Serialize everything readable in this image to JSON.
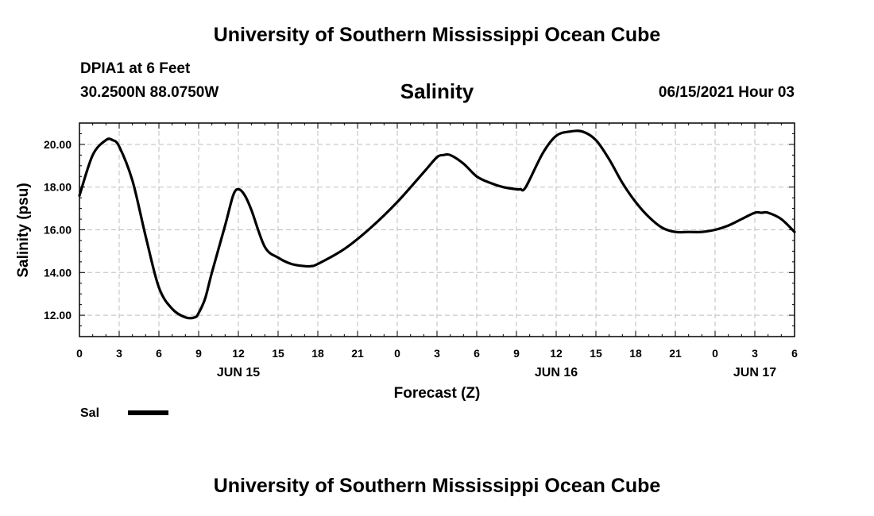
{
  "header": {
    "title": "University of Southern Mississippi Ocean Cube",
    "station": "DPIA1 at 6 Feet",
    "coords": "30.2500N  88.0750W",
    "datetime": "06/15/2021 Hour 03"
  },
  "footer": {
    "title": "University of Southern Mississippi Ocean Cube"
  },
  "chart_data": {
    "type": "line",
    "title": "Salinity",
    "xlabel": "Forecast (Z)",
    "ylabel": "Salinity (psu)",
    "ylim": [
      11,
      21
    ],
    "yticks": [
      "12.00",
      "14.00",
      "16.00",
      "18.00",
      "20.00"
    ],
    "ytick_values": [
      12,
      14,
      16,
      18,
      20
    ],
    "xlim": [
      0,
      54
    ],
    "xtick_labels": [
      "0",
      "3",
      "6",
      "9",
      "12",
      "15",
      "18",
      "21",
      "0",
      "3",
      "6",
      "9",
      "12",
      "15",
      "18",
      "21",
      "0",
      "3",
      "6"
    ],
    "day_labels": [
      {
        "label": "JUN 15",
        "x": 12
      },
      {
        "label": "JUN 16",
        "x": 36
      },
      {
        "label": "JUN 17",
        "x": 51
      }
    ],
    "grid": true,
    "legend": {
      "position": "bottom-left",
      "entries": [
        "Sal"
      ]
    },
    "series": [
      {
        "name": "Sal",
        "color": "#000000",
        "x": [
          0,
          1,
          2,
          2.5,
          3,
          4,
          5,
          6,
          7,
          8,
          8.7,
          9,
          9.5,
          10,
          11,
          11.6,
          12,
          12.5,
          13,
          14,
          15,
          16,
          17,
          17.5,
          18,
          20,
          22,
          24,
          26,
          27,
          27.5,
          28,
          29,
          30,
          31,
          32,
          33,
          33.3,
          33.7,
          35,
          36,
          37,
          38,
          39,
          40,
          41,
          42,
          43,
          44,
          45,
          46,
          47,
          48,
          49,
          50,
          51,
          51.5,
          52,
          53,
          54
        ],
        "values": [
          17.6,
          19.5,
          20.2,
          20.2,
          19.9,
          18.3,
          15.7,
          13.3,
          12.3,
          11.9,
          11.9,
          12.1,
          12.8,
          14.0,
          16.2,
          17.6,
          17.9,
          17.6,
          16.9,
          15.2,
          14.7,
          14.4,
          14.3,
          14.3,
          14.4,
          15.1,
          16.1,
          17.3,
          18.7,
          19.4,
          19.5,
          19.5,
          19.1,
          18.5,
          18.2,
          18.0,
          17.9,
          17.9,
          18.0,
          19.6,
          20.4,
          20.6,
          20.6,
          20.2,
          19.3,
          18.2,
          17.3,
          16.6,
          16.1,
          15.9,
          15.9,
          15.9,
          16.0,
          16.2,
          16.5,
          16.8,
          16.8,
          16.8,
          16.5,
          15.9
        ]
      }
    ]
  }
}
